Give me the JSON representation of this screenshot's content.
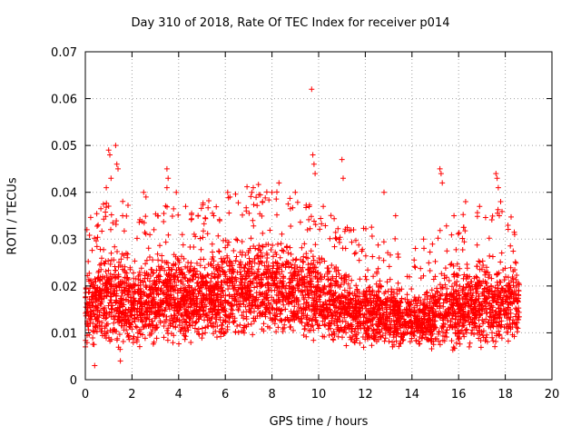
{
  "chart_data": {
    "type": "scatter",
    "title": "Day 310 of 2018, Rate Of TEC Index for receiver p014",
    "xlabel": "GPS time / hours",
    "ylabel": "ROTI / TECUs",
    "xlim": [
      0,
      20
    ],
    "ylim": [
      0,
      0.07
    ],
    "xticks": [
      "0",
      "2",
      "4",
      "6",
      "8",
      "10",
      "12",
      "14",
      "16",
      "18",
      "20"
    ],
    "yticks": [
      "0",
      "0.01",
      "0.02",
      "0.03",
      "0.04",
      "0.05",
      "0.06",
      "0.07"
    ],
    "grid": true,
    "marker": "+",
    "color": "#ff0000",
    "x_data_range": [
      0,
      18.6
    ],
    "seed": 310,
    "envelope": [
      {
        "x": 0.0,
        "low": 0.006,
        "high": 0.026
      },
      {
        "x": 0.8,
        "low": 0.006,
        "high": 0.03
      },
      {
        "x": 1.5,
        "low": 0.005,
        "high": 0.031
      },
      {
        "x": 2.5,
        "low": 0.007,
        "high": 0.028
      },
      {
        "x": 3.5,
        "low": 0.006,
        "high": 0.032
      },
      {
        "x": 4.5,
        "low": 0.007,
        "high": 0.03
      },
      {
        "x": 5.5,
        "low": 0.007,
        "high": 0.031
      },
      {
        "x": 6.5,
        "low": 0.008,
        "high": 0.033
      },
      {
        "x": 7.5,
        "low": 0.008,
        "high": 0.034
      },
      {
        "x": 8.5,
        "low": 0.008,
        "high": 0.033
      },
      {
        "x": 9.5,
        "low": 0.008,
        "high": 0.031
      },
      {
        "x": 10.5,
        "low": 0.007,
        "high": 0.028
      },
      {
        "x": 11.5,
        "low": 0.006,
        "high": 0.024
      },
      {
        "x": 12.5,
        "low": 0.006,
        "high": 0.025
      },
      {
        "x": 13.5,
        "low": 0.006,
        "high": 0.022
      },
      {
        "x": 14.5,
        "low": 0.006,
        "high": 0.02
      },
      {
        "x": 15.5,
        "low": 0.006,
        "high": 0.027
      },
      {
        "x": 16.5,
        "low": 0.005,
        "high": 0.028
      },
      {
        "x": 17.5,
        "low": 0.006,
        "high": 0.029
      },
      {
        "x": 18.6,
        "low": 0.007,
        "high": 0.03
      }
    ],
    "spikes": [
      [
        1.0,
        0.049
      ],
      [
        1.05,
        0.048
      ],
      [
        1.1,
        0.043
      ],
      [
        0.9,
        0.041
      ],
      [
        1.3,
        0.05
      ],
      [
        1.35,
        0.046
      ],
      [
        1.4,
        0.045
      ],
      [
        0.55,
        0.033
      ],
      [
        1.6,
        0.035
      ],
      [
        2.5,
        0.04
      ],
      [
        2.6,
        0.039
      ],
      [
        3.5,
        0.045
      ],
      [
        3.55,
        0.043
      ],
      [
        3.5,
        0.041
      ],
      [
        3.9,
        0.04
      ],
      [
        4.3,
        0.037
      ],
      [
        5.5,
        0.035
      ],
      [
        6.1,
        0.04
      ],
      [
        6.2,
        0.039
      ],
      [
        6.9,
        0.036
      ],
      [
        7.2,
        0.041
      ],
      [
        7.6,
        0.038
      ],
      [
        8.0,
        0.04
      ],
      [
        8.3,
        0.042
      ],
      [
        9.0,
        0.04
      ],
      [
        9.7,
        0.062
      ],
      [
        9.75,
        0.048
      ],
      [
        9.8,
        0.046
      ],
      [
        9.85,
        0.044
      ],
      [
        10.2,
        0.037
      ],
      [
        11.0,
        0.047
      ],
      [
        11.05,
        0.043
      ],
      [
        11.5,
        0.032
      ],
      [
        12.8,
        0.04
      ],
      [
        13.3,
        0.035
      ],
      [
        14.5,
        0.03
      ],
      [
        15.2,
        0.045
      ],
      [
        15.25,
        0.044
      ],
      [
        15.3,
        0.042
      ],
      [
        15.8,
        0.035
      ],
      [
        16.3,
        0.038
      ],
      [
        16.9,
        0.037
      ],
      [
        17.6,
        0.044
      ],
      [
        17.65,
        0.043
      ],
      [
        17.7,
        0.041
      ],
      [
        17.8,
        0.038
      ],
      [
        18.4,
        0.031
      ],
      [
        0.4,
        0.003
      ],
      [
        1.5,
        0.004
      ]
    ]
  }
}
